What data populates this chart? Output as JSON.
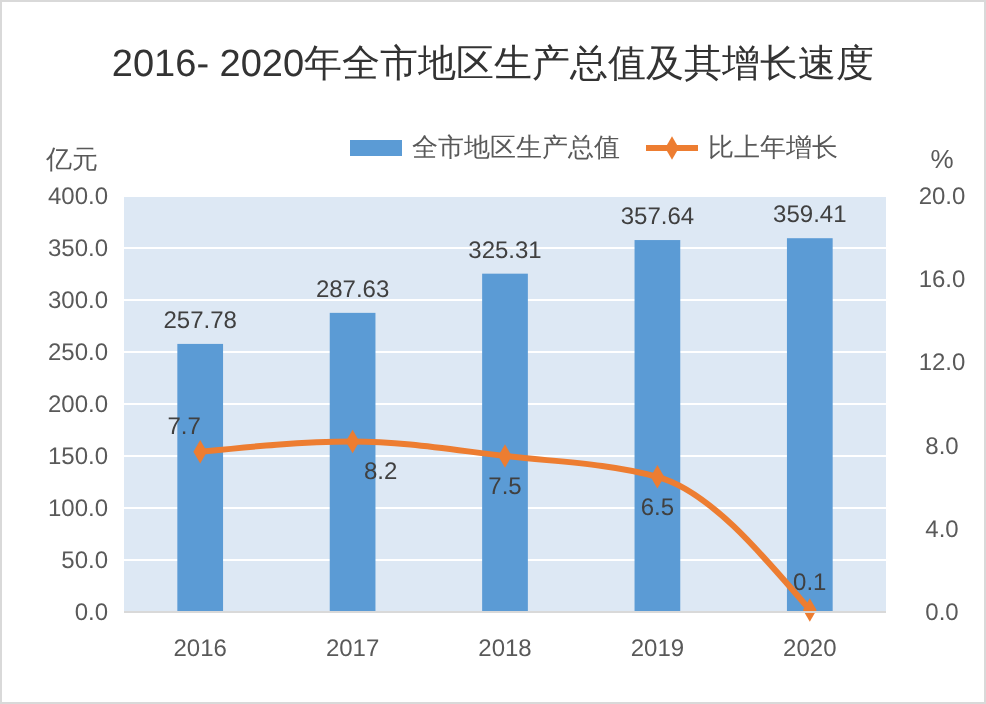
{
  "chart_data": {
    "type": "bar",
    "title": "2016- 2020年全市地区生产总值及其增长速度",
    "ylabel": "亿元",
    "y2label": "%",
    "categories": [
      "2016",
      "2017",
      "2018",
      "2019",
      "2020"
    ],
    "series": [
      {
        "name": "全市地区生产总值",
        "color": "#5b9bd5",
        "values": [
          257.78,
          287.63,
          325.31,
          357.64,
          359.41
        ]
      },
      {
        "name": "比上年增长",
        "type": "line",
        "axis": "y2",
        "color": "#ed7d31",
        "values": [
          7.7,
          8.2,
          7.5,
          6.5,
          0.1
        ],
        "marker": "diamond"
      }
    ],
    "ylim": [
      0,
      400
    ],
    "yticks": [
      {
        "value": 0,
        "label": "0.0"
      },
      {
        "value": 50,
        "label": "50.0"
      },
      {
        "value": 100,
        "label": "100.0"
      },
      {
        "value": 150,
        "label": "150.0"
      },
      {
        "value": 200,
        "label": "200.0"
      },
      {
        "value": 250,
        "label": "250.0"
      },
      {
        "value": 300,
        "label": "300.0"
      },
      {
        "value": 350,
        "label": "350.0"
      },
      {
        "value": 400,
        "label": "400.0"
      }
    ],
    "y2lim": [
      0,
      20
    ],
    "y2ticks": [
      {
        "value": 0,
        "label": "0.0"
      },
      {
        "value": 4,
        "label": "4.0"
      },
      {
        "value": 8,
        "label": "8.0"
      },
      {
        "value": 12,
        "label": "12.0"
      },
      {
        "value": 16,
        "label": "16.0"
      },
      {
        "value": 20,
        "label": "20.0"
      }
    ],
    "grid": "y",
    "legend": "top",
    "data_labels": true
  }
}
